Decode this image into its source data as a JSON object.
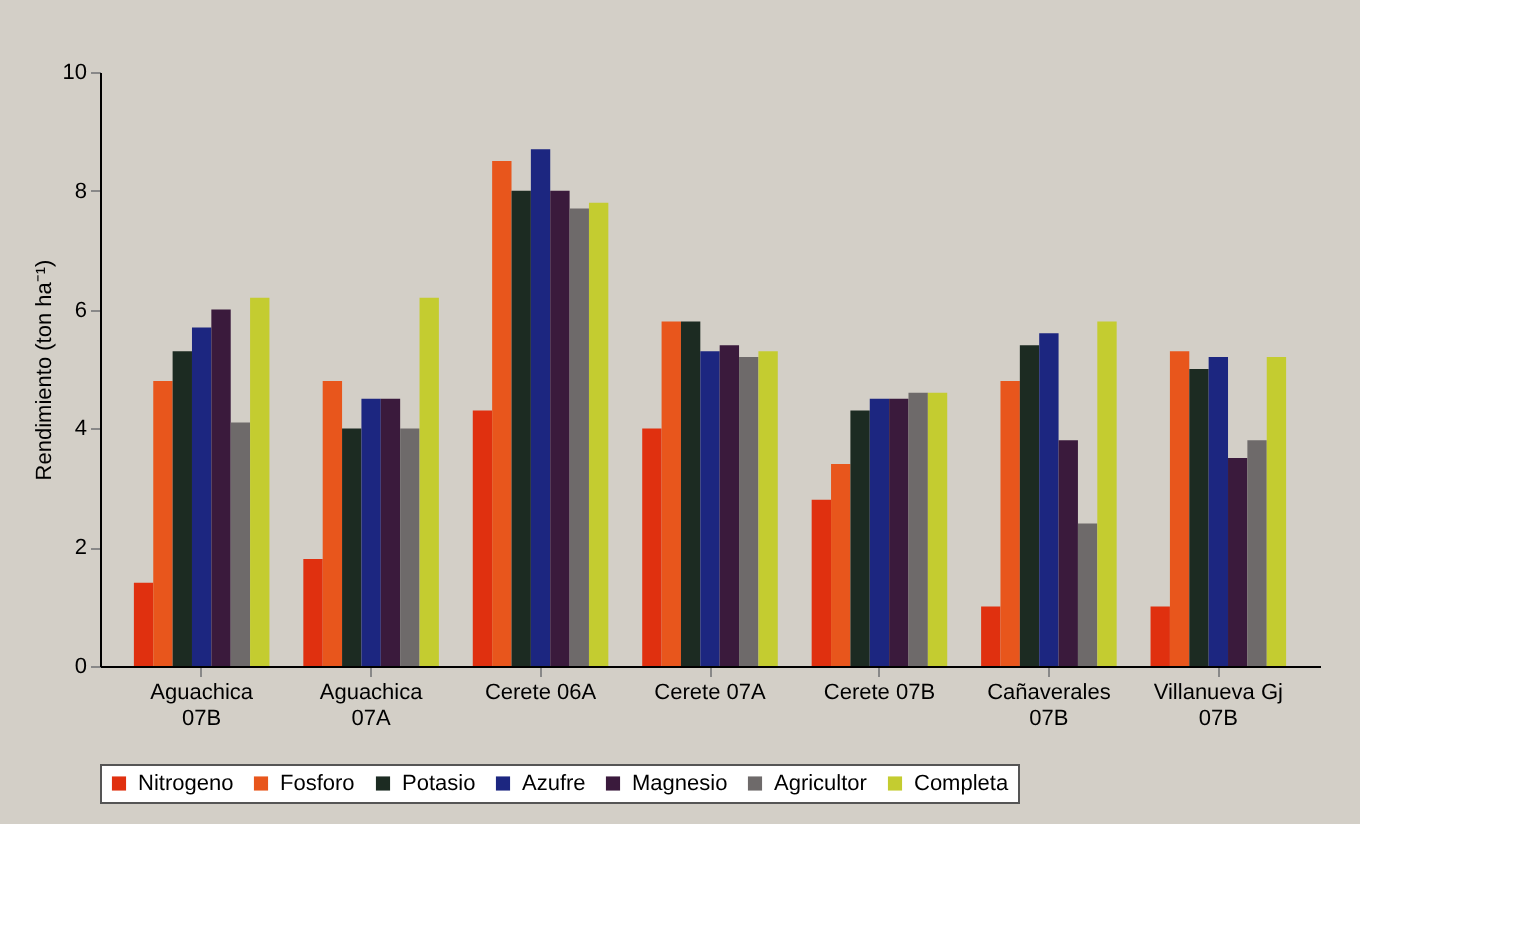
{
  "chart_data": {
    "type": "bar",
    "ylabel": "Rendimiento (ton ha⁻¹)",
    "categories": [
      "Aguachica 07B",
      "Aguachica 07A",
      "Cerete 06A",
      "Cerete 07A",
      "Cerete 07B",
      "Cañaverales 07B",
      "Villanueva Gj 07B"
    ],
    "series": [
      {
        "name": "Nitrogeno",
        "color": "#e0300f",
        "values": [
          1.4,
          1.8,
          4.3,
          4.0,
          2.8,
          1.0,
          1.0
        ]
      },
      {
        "name": "Fosforo",
        "color": "#e8561c",
        "values": [
          4.8,
          4.8,
          8.5,
          5.8,
          3.4,
          4.8,
          5.3
        ]
      },
      {
        "name": "Potasio",
        "color": "#1c2b22",
        "values": [
          5.3,
          4.0,
          8.0,
          5.8,
          4.3,
          5.4,
          5.0
        ]
      },
      {
        "name": "Azufre",
        "color": "#1c2680",
        "values": [
          5.7,
          4.5,
          8.7,
          5.3,
          4.5,
          5.6,
          5.2
        ]
      },
      {
        "name": "Magnesio",
        "color": "#3a1a3c",
        "values": [
          6.0,
          4.5,
          8.0,
          5.4,
          4.5,
          3.8,
          3.5
        ]
      },
      {
        "name": "Agricultor",
        "color": "#6e6a6a",
        "values": [
          4.1,
          4.0,
          7.7,
          5.2,
          4.6,
          2.4,
          3.8
        ]
      },
      {
        "name": "Completa",
        "color": "#c4cc30",
        "values": [
          6.2,
          6.2,
          7.8,
          5.3,
          4.6,
          5.8,
          5.2
        ]
      }
    ],
    "ylim": [
      0,
      10
    ],
    "yticks": [
      0,
      2,
      4,
      6,
      8,
      10
    ],
    "grid": false,
    "legend": "bottom"
  }
}
